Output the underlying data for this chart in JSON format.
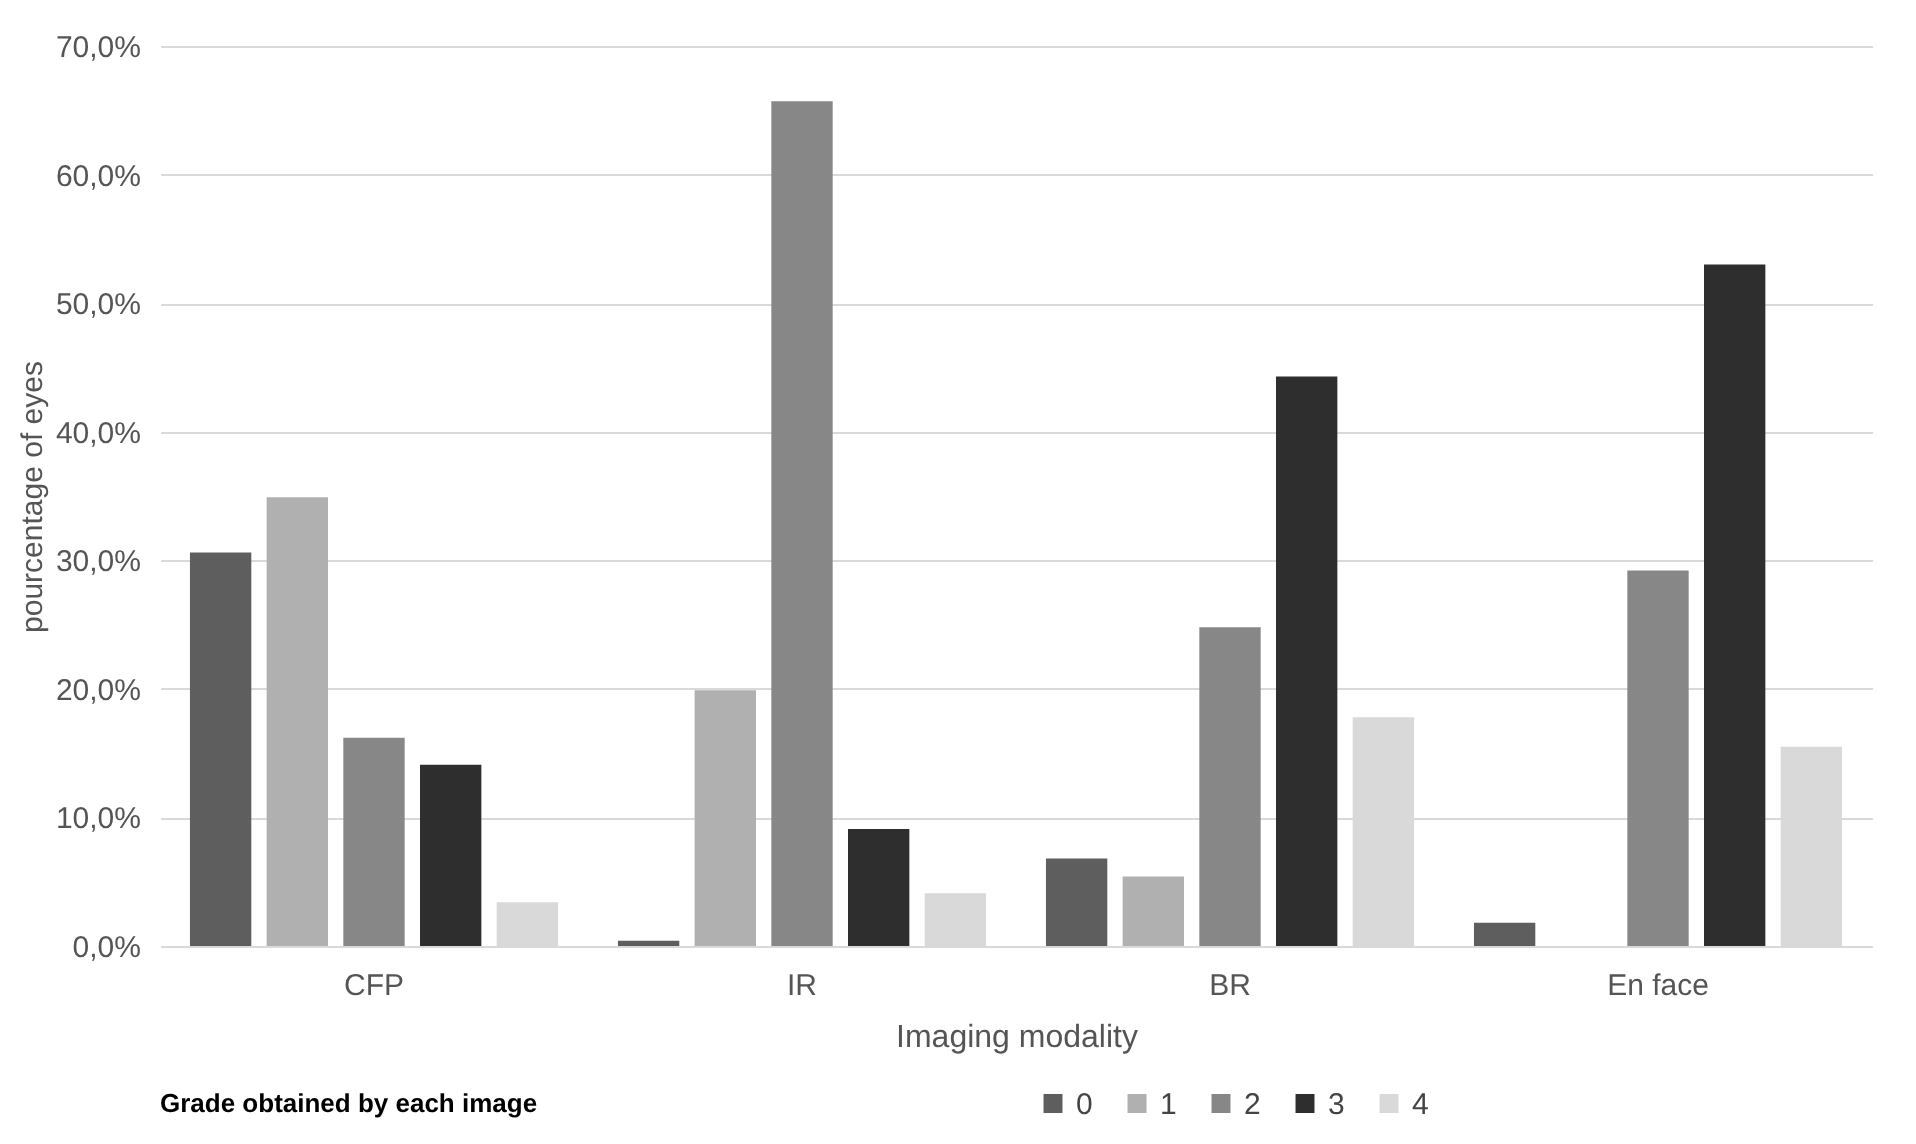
{
  "chart_data": {
    "type": "bar",
    "xlabel": "Imaging modality",
    "ylabel": "pourcentage of eyes",
    "legend_title": "Grade obtained by each image",
    "categories": [
      "CFP",
      "IR",
      "BR",
      "En face"
    ],
    "series": [
      {
        "name": "0",
        "color": "#5e5e5e",
        "values": [
          30.6,
          0.4,
          6.8,
          1.8
        ]
      },
      {
        "name": "1",
        "color": "#b0b0b0",
        "values": [
          34.9,
          19.9,
          5.4,
          0
        ]
      },
      {
        "name": "2",
        "color": "#878787",
        "values": [
          16.2,
          65.7,
          24.8,
          29.2
        ]
      },
      {
        "name": "3",
        "color": "#2e2e2e",
        "values": [
          14.1,
          9.1,
          44.3,
          53.0
        ]
      },
      {
        "name": "4",
        "color": "#d9d9d9",
        "values": [
          3.4,
          4.1,
          17.8,
          15.5
        ]
      }
    ],
    "ylim": [
      0,
      70
    ],
    "yticks": [
      {
        "value": 0,
        "label": "0,0%"
      },
      {
        "value": 10,
        "label": "10,0%"
      },
      {
        "value": 20,
        "label": "20,0%"
      },
      {
        "value": 30,
        "label": "30,0%"
      },
      {
        "value": 40,
        "label": "40,0%"
      },
      {
        "value": 50,
        "label": "50,0%"
      },
      {
        "value": 60,
        "label": "60,0%"
      },
      {
        "value": 70,
        "label": "70,0%"
      }
    ],
    "grid": "y",
    "legend": "bottom"
  }
}
